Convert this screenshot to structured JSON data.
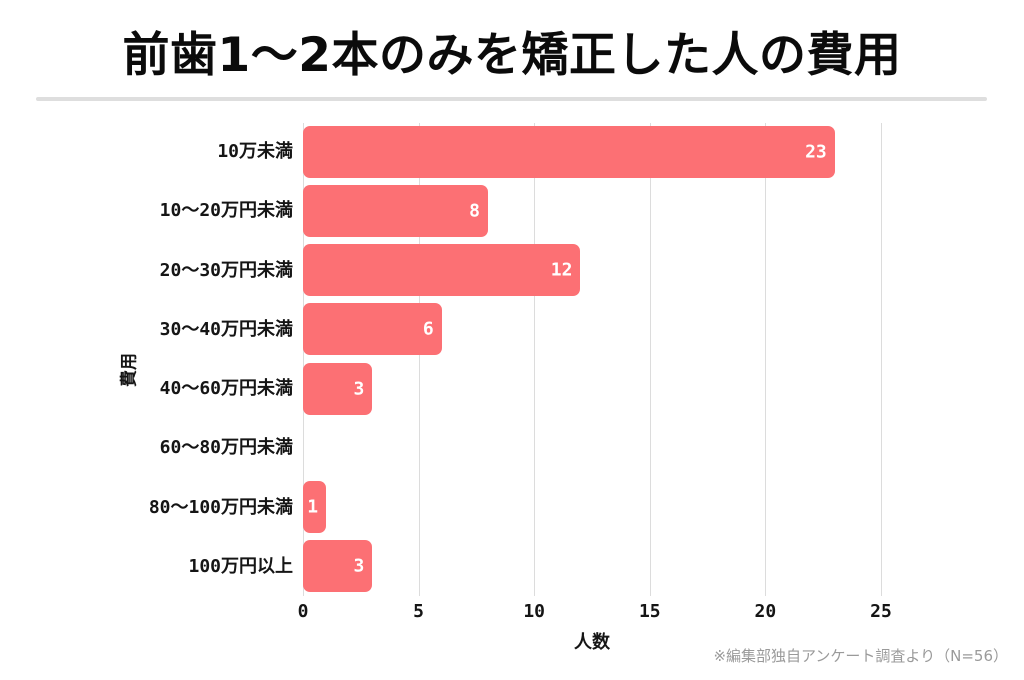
{
  "title": "前歯1〜2本のみを矯正した人の費用",
  "footnote": "※編集部独自アンケート調査より（N=56）",
  "chart_data": {
    "type": "bar",
    "orientation": "horizontal",
    "title": "前歯1〜2本のみを矯正した人の費用",
    "categories": [
      "10万未満",
      "10〜20万円未満",
      "20〜30万円未満",
      "30〜40万円未満",
      "40〜60万円未満",
      "60〜80万円未満",
      "80〜100万円未満",
      "100万円以上"
    ],
    "values": [
      23,
      8,
      12,
      6,
      3,
      0,
      1,
      3
    ],
    "xlabel": "人数",
    "ylabel": "費用",
    "xlim": [
      0,
      25
    ],
    "xticks": [
      0,
      5,
      10,
      15,
      20,
      25
    ],
    "grid": true,
    "legend": "none",
    "bar_color": "#FC7074",
    "value_label_color": "#FFFFFF",
    "grid_color": "#DCDCDC",
    "text_color": "#151515",
    "footnote_color": "#9A9A9A"
  }
}
